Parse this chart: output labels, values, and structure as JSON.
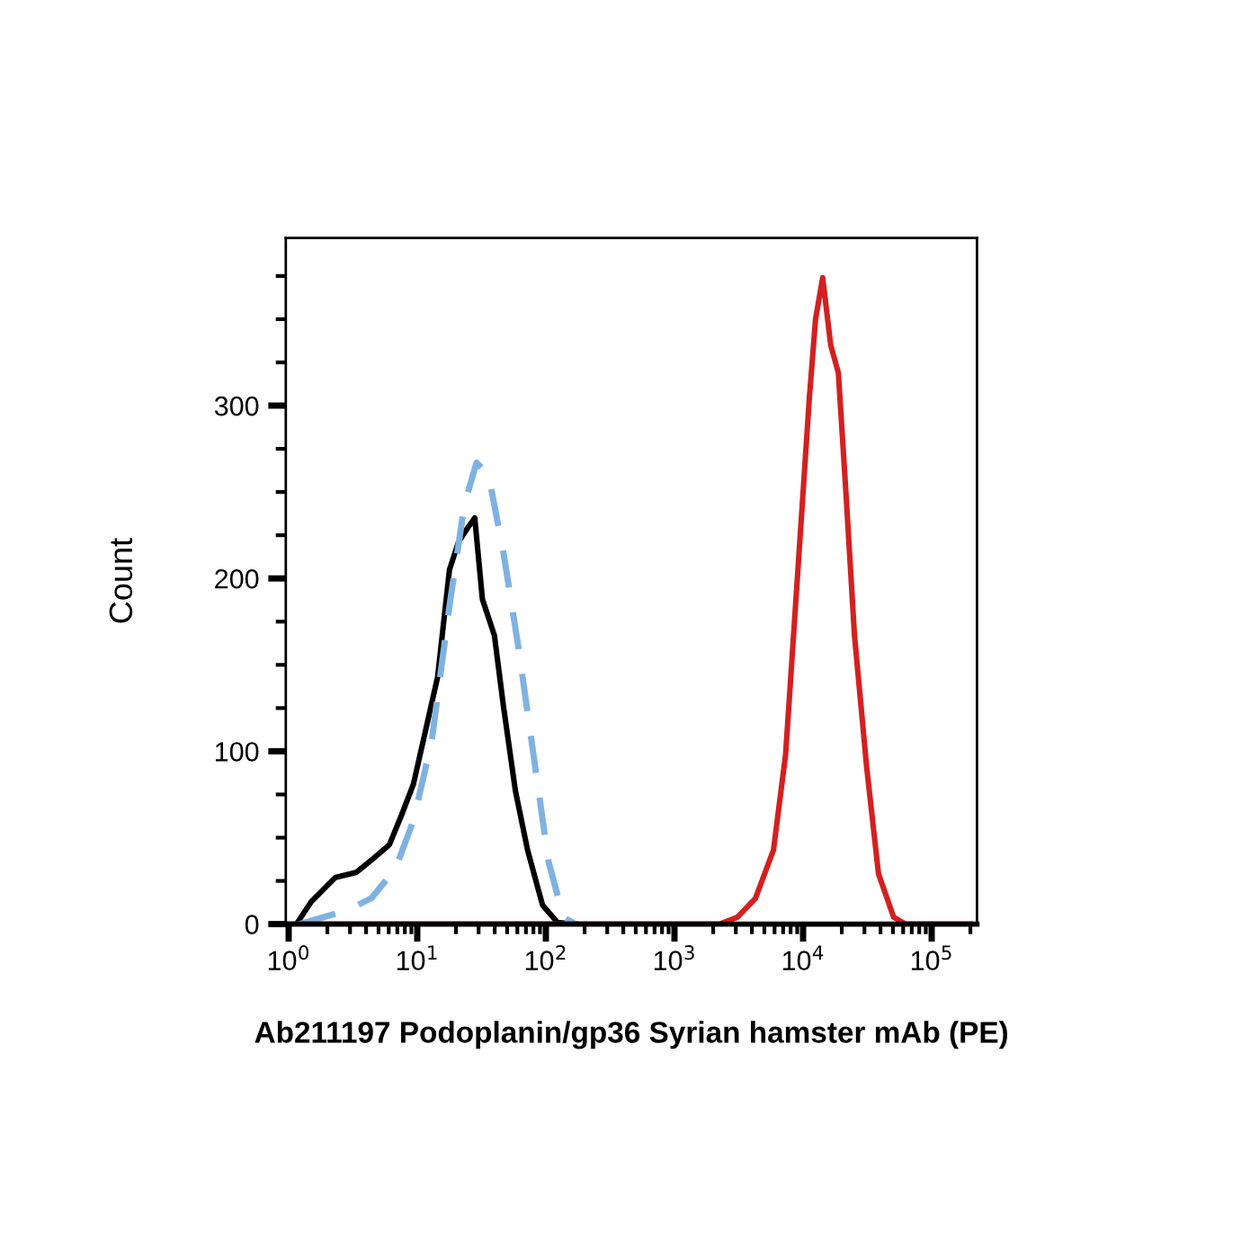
{
  "chart_data": {
    "type": "line",
    "xlabel": "Ab211197 Podoplanin/gp36 Syrian hamster mAb (PE)",
    "ylabel": "Count",
    "log": "x",
    "xlim": [
      0.95,
      225000
    ],
    "xticks": [
      {
        "value": 1,
        "label": "10$^{0}$"
      },
      {
        "value": 10,
        "label": "10$^{1}$"
      },
      {
        "value": 100,
        "label": "10$^{2}$"
      },
      {
        "value": 1000,
        "label": "10$^{3}$"
      },
      {
        "value": 10000,
        "label": "10$^{4}$"
      },
      {
        "value": 100000,
        "label": "10$^{5}$"
      }
    ],
    "ylim": [
      0,
      397
    ],
    "yticks": [
      0,
      {
        "value": 25,
        "label": null
      },
      {
        "value": 50,
        "label": null
      },
      {
        "value": 75,
        "label": null
      },
      100,
      {
        "value": 125,
        "label": null
      },
      {
        "value": 150,
        "label": null
      },
      {
        "value": 175,
        "label": null
      },
      200,
      {
        "value": 225,
        "label": null
      },
      {
        "value": 250,
        "label": null
      },
      {
        "value": 275,
        "label": null
      },
      300,
      {
        "value": 325,
        "label": null
      },
      {
        "value": 350,
        "label": null
      },
      {
        "value": 375,
        "label": null
      }
    ],
    "grid": false,
    "series": [
      {
        "color": "#000000",
        "line_style": "solid",
        "x": [
          1.15,
          1.5,
          2.31,
          3.37,
          4.4,
          6.08,
          7.54,
          9.34,
          11.6,
          14.4,
          17.8,
          20.9,
          24.5,
          28.0,
          32.1,
          39.8,
          46.8,
          58.0,
          72.0,
          94.2,
          123,
          170
        ],
        "values": [
          0,
          13,
          27,
          30,
          37,
          46,
          63,
          81,
          112,
          143,
          205,
          221,
          229,
          235,
          188,
          167,
          126,
          77,
          43,
          11,
          1,
          0
        ]
      },
      {
        "color": "#7fb2e0",
        "line_style": "dashed",
        "x": [
          1.21,
          2.86,
          4.4,
          6.77,
          9.34,
          12.9,
          17.8,
          23.3,
          28.9,
          35.8,
          46.8,
          61.2,
          80.1,
          105,
          137,
          170
        ],
        "values": [
          0,
          8,
          15,
          32,
          60,
          105,
          184,
          243,
          267,
          260,
          215,
          160,
          98,
          36,
          4,
          0
        ]
      },
      {
        "color": "#d42020",
        "line_style": "solid",
        "x": [
          1,
          2240,
          3090,
          4270,
          5890,
          7310,
          9060,
          11200,
          12500,
          14200,
          16400,
          18800,
          21400,
          25100,
          31200,
          38600,
          50600,
          62700,
          200000
        ],
        "values": [
          0,
          0,
          4,
          15,
          43,
          98,
          202,
          305,
          350,
          374,
          335,
          319,
          253,
          167,
          91,
          29,
          4,
          0,
          0
        ]
      }
    ]
  }
}
